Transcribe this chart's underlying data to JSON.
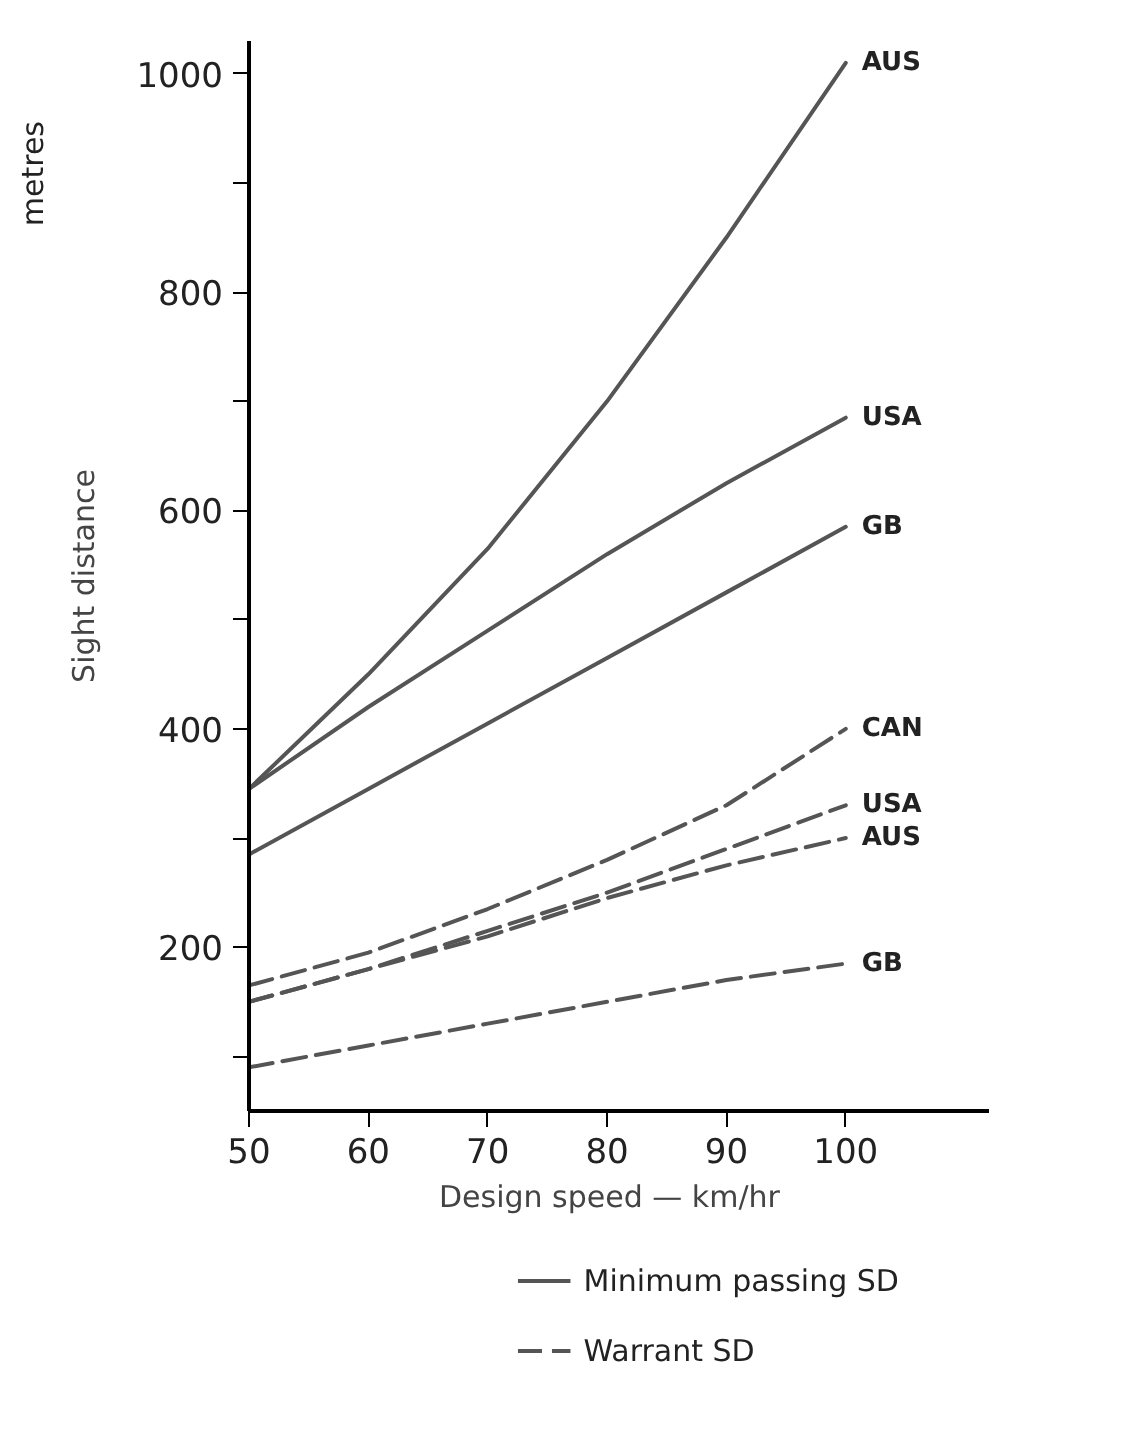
{
  "chart_data": {
    "type": "line",
    "xlabel": "Design speed  —  km/hr",
    "ylabel": "Sight distance",
    "x": [
      50,
      60,
      70,
      80,
      90,
      100
    ],
    "series": [
      {
        "name": "AUS",
        "color": "#555555",
        "line_style": "solid",
        "values": [
          345,
          450,
          565,
          700,
          850,
          1010
        ]
      },
      {
        "name": "USA",
        "color": "#555555",
        "line_style": "solid",
        "values": [
          345,
          420,
          490,
          560,
          625,
          685
        ]
      },
      {
        "name": "GB",
        "color": "#555555",
        "line_style": "solid",
        "values": [
          285,
          345,
          405,
          465,
          525,
          585
        ]
      },
      {
        "name": "CAN",
        "color": "#555555",
        "line_style": "dashed",
        "values": [
          165,
          195,
          235,
          280,
          330,
          400
        ]
      },
      {
        "name": "USA",
        "color": "#555555",
        "line_style": "dashed",
        "values": [
          150,
          180,
          215,
          250,
          290,
          330
        ]
      },
      {
        "name": "AUS",
        "color": "#555555",
        "line_style": "dashed",
        "values": [
          150,
          180,
          210,
          245,
          275,
          300
        ]
      },
      {
        "name": "GB",
        "color": "#555555",
        "line_style": "dashed",
        "values": [
          90,
          110,
          130,
          150,
          170,
          185
        ]
      }
    ],
    "xlim": [
      50,
      112
    ],
    "ylim": [
      50,
      1030
    ],
    "xticks": [
      50,
      60,
      70,
      80,
      90,
      100
    ],
    "yticks": [
      {
        "value": 100,
        "label": null
      },
      200,
      {
        "value": 300,
        "label": null
      },
      400,
      {
        "value": 500,
        "label": null
      },
      600,
      {
        "value": 700,
        "label": null
      },
      800,
      {
        "value": 900,
        "label": null
      },
      1000
    ],
    "grid": false,
    "marker": "none",
    "annotations": [
      "metres",
      "Minimum passing SD",
      "Warrant SD"
    ]
  }
}
